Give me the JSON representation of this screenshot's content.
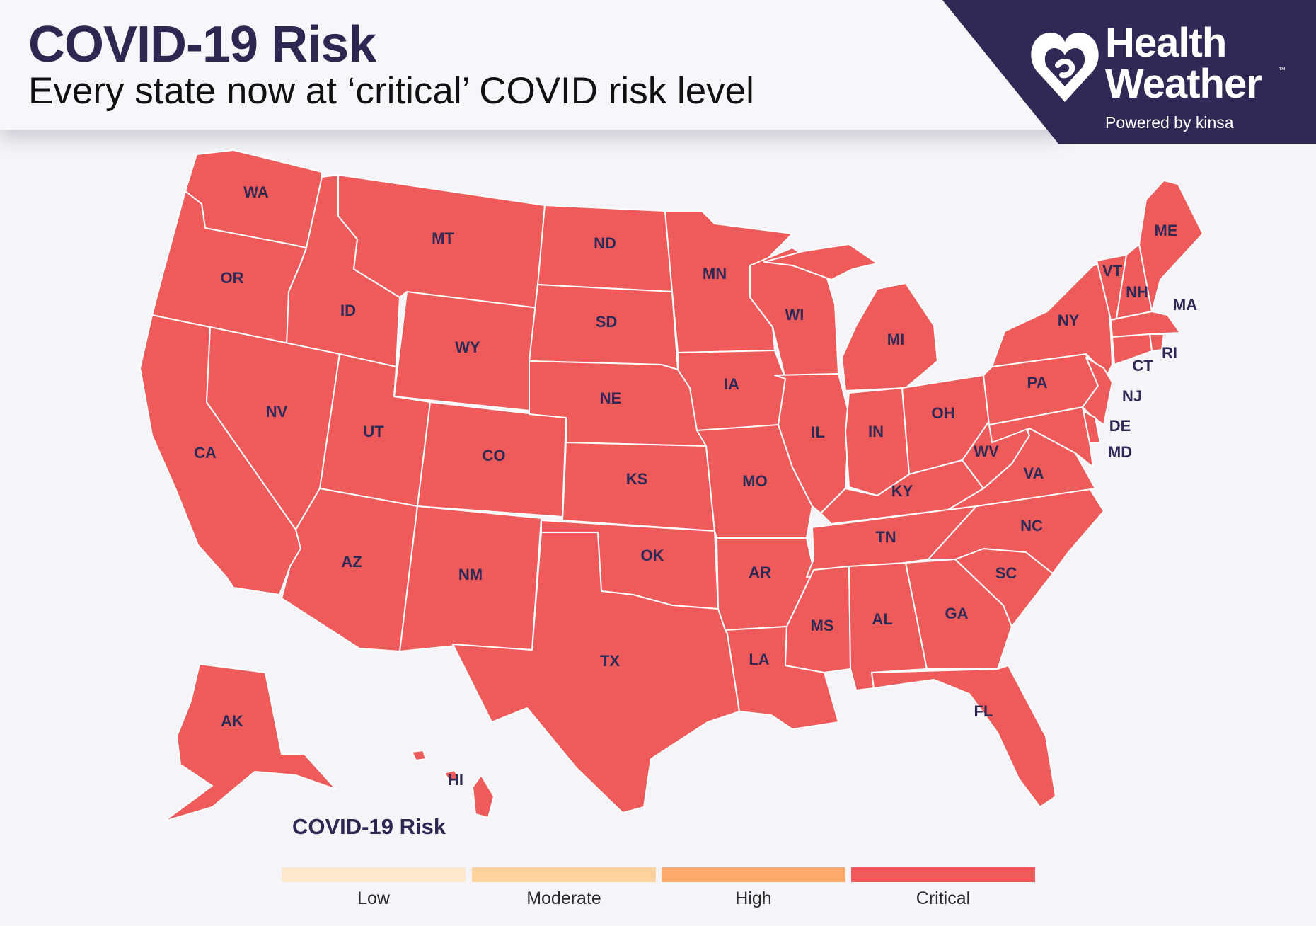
{
  "header": {
    "title": "COVID-19 Risk",
    "subtitle": "Every state now at ‘critical’ COVID risk level"
  },
  "brand": {
    "name_line1": "Health",
    "name_line2": "Weather",
    "trademark": "™",
    "tagline": "Powered by kinsa",
    "panel_color": "#2e2a55"
  },
  "map": {
    "risk_color_critical": "#ef5b5b",
    "states": [
      {
        "abbr": "WA",
        "risk": "Critical"
      },
      {
        "abbr": "OR",
        "risk": "Critical"
      },
      {
        "abbr": "CA",
        "risk": "Critical"
      },
      {
        "abbr": "ID",
        "risk": "Critical"
      },
      {
        "abbr": "NV",
        "risk": "Critical"
      },
      {
        "abbr": "MT",
        "risk": "Critical"
      },
      {
        "abbr": "WY",
        "risk": "Critical"
      },
      {
        "abbr": "UT",
        "risk": "Critical"
      },
      {
        "abbr": "AZ",
        "risk": "Critical"
      },
      {
        "abbr": "CO",
        "risk": "Critical"
      },
      {
        "abbr": "NM",
        "risk": "Critical"
      },
      {
        "abbr": "ND",
        "risk": "Critical"
      },
      {
        "abbr": "SD",
        "risk": "Critical"
      },
      {
        "abbr": "NE",
        "risk": "Critical"
      },
      {
        "abbr": "KS",
        "risk": "Critical"
      },
      {
        "abbr": "OK",
        "risk": "Critical"
      },
      {
        "abbr": "TX",
        "risk": "Critical"
      },
      {
        "abbr": "MN",
        "risk": "Critical"
      },
      {
        "abbr": "IA",
        "risk": "Critical"
      },
      {
        "abbr": "MO",
        "risk": "Critical"
      },
      {
        "abbr": "AR",
        "risk": "Critical"
      },
      {
        "abbr": "LA",
        "risk": "Critical"
      },
      {
        "abbr": "WI",
        "risk": "Critical"
      },
      {
        "abbr": "IL",
        "risk": "Critical"
      },
      {
        "abbr": "MI",
        "risk": "Critical"
      },
      {
        "abbr": "IN",
        "risk": "Critical"
      },
      {
        "abbr": "OH",
        "risk": "Critical"
      },
      {
        "abbr": "KY",
        "risk": "Critical"
      },
      {
        "abbr": "TN",
        "risk": "Critical"
      },
      {
        "abbr": "MS",
        "risk": "Critical"
      },
      {
        "abbr": "AL",
        "risk": "Critical"
      },
      {
        "abbr": "GA",
        "risk": "Critical"
      },
      {
        "abbr": "FL",
        "risk": "Critical"
      },
      {
        "abbr": "SC",
        "risk": "Critical"
      },
      {
        "abbr": "NC",
        "risk": "Critical"
      },
      {
        "abbr": "VA",
        "risk": "Critical"
      },
      {
        "abbr": "WV",
        "risk": "Critical"
      },
      {
        "abbr": "PA",
        "risk": "Critical"
      },
      {
        "abbr": "NY",
        "risk": "Critical"
      },
      {
        "abbr": "VT",
        "risk": "Critical"
      },
      {
        "abbr": "NH",
        "risk": "Critical"
      },
      {
        "abbr": "ME",
        "risk": "Critical"
      },
      {
        "abbr": "MA",
        "risk": "Critical"
      },
      {
        "abbr": "RI",
        "risk": "Critical"
      },
      {
        "abbr": "CT",
        "risk": "Critical"
      },
      {
        "abbr": "NJ",
        "risk": "Critical"
      },
      {
        "abbr": "DE",
        "risk": "Critical"
      },
      {
        "abbr": "MD",
        "risk": "Critical"
      },
      {
        "abbr": "AK",
        "risk": "Critical"
      },
      {
        "abbr": "HI",
        "risk": "Critical"
      }
    ]
  },
  "legend": {
    "title": "COVID-19 Risk",
    "items": [
      {
        "label": "Low",
        "color": "#fde8cc"
      },
      {
        "label": "Moderate",
        "color": "#fdd29d"
      },
      {
        "label": "High",
        "color": "#fbaa6c"
      },
      {
        "label": "Critical",
        "color": "#ef5b5b"
      }
    ]
  }
}
